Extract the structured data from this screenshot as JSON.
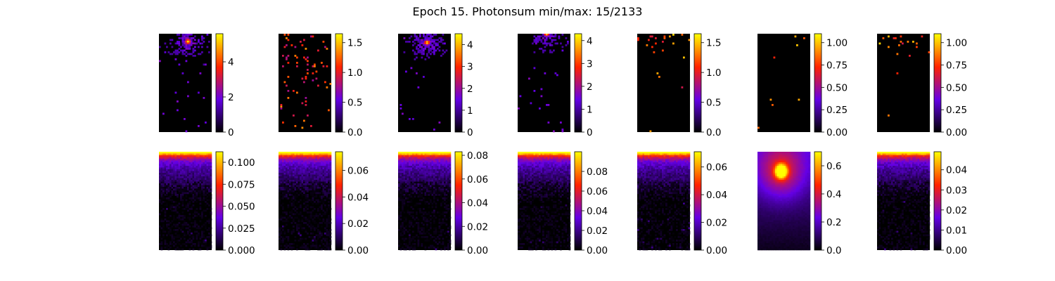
{
  "title": "Epoch 15. Photonsum min/max: 15/2133",
  "colormap": "gnuplot",
  "colormap_stops": [
    "#000000",
    "#6400e6",
    "#ff2200",
    "#ffff00"
  ],
  "chart_data": {
    "type": "heatmap",
    "title": "Epoch 15. Photonsum min/max: 15/2133",
    "layout": "2 rows x 7 columns of heatmap panels, each with a vertical colorbar on its right",
    "grid": false,
    "panels": [
      {
        "row": 1,
        "col": 1,
        "pattern": "hotspot-top",
        "hotspot": [
          0.55,
          0.08
        ],
        "vmin": 0,
        "vmax": 5.6,
        "ticks": [
          {
            "v": 0,
            "t": "0"
          },
          {
            "v": 2,
            "t": "2"
          },
          {
            "v": 4,
            "t": "4"
          }
        ]
      },
      {
        "row": 1,
        "col": 2,
        "pattern": "sparse",
        "vmin": 0,
        "vmax": 1.65,
        "ticks": [
          {
            "v": 0,
            "t": "0.0"
          },
          {
            "v": 0.5,
            "t": "0.5"
          },
          {
            "v": 1.0,
            "t": "1.0"
          },
          {
            "v": 1.5,
            "t": "1.5"
          }
        ]
      },
      {
        "row": 1,
        "col": 3,
        "pattern": "hotspot-top",
        "hotspot": [
          0.55,
          0.09
        ],
        "vmin": 0,
        "vmax": 4.5,
        "ticks": [
          {
            "v": 0,
            "t": "0"
          },
          {
            "v": 1,
            "t": "1"
          },
          {
            "v": 2,
            "t": "2"
          },
          {
            "v": 3,
            "t": "3"
          },
          {
            "v": 4,
            "t": "4"
          }
        ]
      },
      {
        "row": 1,
        "col": 4,
        "pattern": "hotspot-top",
        "hotspot": [
          0.55,
          0.0
        ],
        "vmin": 0,
        "vmax": 4.3,
        "ticks": [
          {
            "v": 0,
            "t": "0"
          },
          {
            "v": 1,
            "t": "1"
          },
          {
            "v": 2,
            "t": "2"
          },
          {
            "v": 3,
            "t": "3"
          },
          {
            "v": 4,
            "t": "4"
          }
        ]
      },
      {
        "row": 1,
        "col": 5,
        "pattern": "sparse-top",
        "vmin": 0,
        "vmax": 1.65,
        "ticks": [
          {
            "v": 0,
            "t": "0.0"
          },
          {
            "v": 0.5,
            "t": "0.5"
          },
          {
            "v": 1.0,
            "t": "1.0"
          },
          {
            "v": 1.5,
            "t": "1.5"
          }
        ]
      },
      {
        "row": 1,
        "col": 6,
        "pattern": "very-sparse",
        "vmin": 0,
        "vmax": 1.1,
        "ticks": [
          {
            "v": 0,
            "t": "0.00"
          },
          {
            "v": 0.25,
            "t": "0.25"
          },
          {
            "v": 0.5,
            "t": "0.50"
          },
          {
            "v": 0.75,
            "t": "0.75"
          },
          {
            "v": 1.0,
            "t": "1.00"
          }
        ]
      },
      {
        "row": 1,
        "col": 7,
        "pattern": "sparse-top",
        "vmin": 0,
        "vmax": 1.1,
        "ticks": [
          {
            "v": 0,
            "t": "0.00"
          },
          {
            "v": 0.25,
            "t": "0.25"
          },
          {
            "v": 0.5,
            "t": "0.50"
          },
          {
            "v": 0.75,
            "t": "0.75"
          },
          {
            "v": 1.0,
            "t": "1.00"
          }
        ]
      },
      {
        "row": 2,
        "col": 1,
        "pattern": "gradient-top",
        "vmin": 0,
        "vmax": 0.112,
        "ticks": [
          {
            "v": 0,
            "t": "0.000"
          },
          {
            "v": 0.025,
            "t": "0.025"
          },
          {
            "v": 0.05,
            "t": "0.050"
          },
          {
            "v": 0.075,
            "t": "0.075"
          },
          {
            "v": 0.1,
            "t": "0.100"
          }
        ]
      },
      {
        "row": 2,
        "col": 2,
        "pattern": "gradient-top",
        "vmin": 0,
        "vmax": 0.074,
        "ticks": [
          {
            "v": 0,
            "t": "0.00"
          },
          {
            "v": 0.02,
            "t": "0.02"
          },
          {
            "v": 0.04,
            "t": "0.04"
          },
          {
            "v": 0.06,
            "t": "0.06"
          }
        ]
      },
      {
        "row": 2,
        "col": 3,
        "pattern": "gradient-top",
        "vmin": 0,
        "vmax": 0.083,
        "ticks": [
          {
            "v": 0,
            "t": "0.00"
          },
          {
            "v": 0.02,
            "t": "0.02"
          },
          {
            "v": 0.04,
            "t": "0.04"
          },
          {
            "v": 0.06,
            "t": "0.06"
          },
          {
            "v": 0.08,
            "t": "0.08"
          }
        ]
      },
      {
        "row": 2,
        "col": 4,
        "pattern": "gradient-top",
        "vmin": 0,
        "vmax": 0.1,
        "ticks": [
          {
            "v": 0,
            "t": "0.00"
          },
          {
            "v": 0.02,
            "t": "0.02"
          },
          {
            "v": 0.04,
            "t": "0.04"
          },
          {
            "v": 0.06,
            "t": "0.06"
          },
          {
            "v": 0.08,
            "t": "0.08"
          }
        ]
      },
      {
        "row": 2,
        "col": 5,
        "pattern": "gradient-top",
        "vmin": 0,
        "vmax": 0.071,
        "ticks": [
          {
            "v": 0,
            "t": "0.00"
          },
          {
            "v": 0.02,
            "t": "0.02"
          },
          {
            "v": 0.04,
            "t": "0.04"
          },
          {
            "v": 0.06,
            "t": "0.06"
          }
        ]
      },
      {
        "row": 2,
        "col": 6,
        "pattern": "blob",
        "hotspot": [
          0.45,
          0.2
        ],
        "vmin": 0,
        "vmax": 0.7,
        "ticks": [
          {
            "v": 0,
            "t": "0.0"
          },
          {
            "v": 0.2,
            "t": "0.2"
          },
          {
            "v": 0.4,
            "t": "0.4"
          },
          {
            "v": 0.6,
            "t": "0.6"
          }
        ]
      },
      {
        "row": 2,
        "col": 7,
        "pattern": "gradient-top",
        "vmin": 0,
        "vmax": 0.049,
        "ticks": [
          {
            "v": 0,
            "t": "0.00"
          },
          {
            "v": 0.01,
            "t": "0.01"
          },
          {
            "v": 0.02,
            "t": "0.02"
          },
          {
            "v": 0.03,
            "t": "0.03"
          },
          {
            "v": 0.04,
            "t": "0.04"
          }
        ]
      }
    ]
  }
}
